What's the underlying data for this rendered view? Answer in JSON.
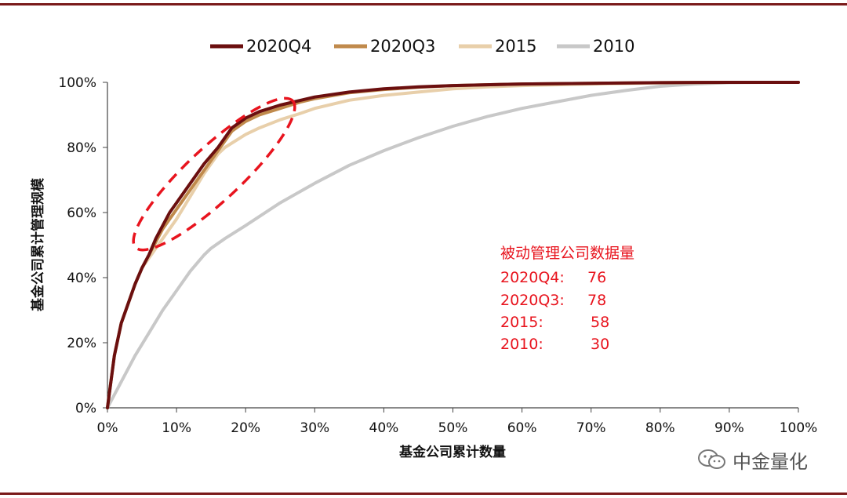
{
  "theme": {
    "rule_color": "#7a1a1a",
    "annotation_color": "#e8141e",
    "ellipse_color": "#e8141e",
    "axis_color": "#444444"
  },
  "chart_data": {
    "type": "line",
    "xlabel": "基金公司累计数量",
    "ylabel": "基金公司累计管理规模",
    "xlim": [
      0,
      100
    ],
    "ylim": [
      0,
      100
    ],
    "x_tick_labels": [
      "0%",
      "10%",
      "20%",
      "30%",
      "40%",
      "50%",
      "60%",
      "70%",
      "80%",
      "90%",
      "100%"
    ],
    "y_tick_labels": [
      "0%",
      "20%",
      "40%",
      "60%",
      "80%",
      "100%"
    ],
    "legend_position": "top",
    "grid": false,
    "series": [
      {
        "name": "2020Q4",
        "color": "#6b0f0f",
        "width": 4,
        "x": [
          0,
          1,
          2,
          3,
          4,
          5,
          6,
          7,
          8,
          9,
          10,
          12,
          14,
          16,
          18,
          20,
          22,
          25,
          28,
          30,
          35,
          40,
          45,
          50,
          60,
          70,
          80,
          90,
          100
        ],
        "y": [
          0,
          16,
          26,
          32,
          38,
          43,
          47,
          52,
          56,
          60,
          63,
          69,
          75,
          80,
          86,
          89,
          91,
          93,
          94.5,
          95.5,
          97,
          98,
          98.6,
          99,
          99.5,
          99.7,
          99.9,
          100,
          100
        ]
      },
      {
        "name": "2020Q3",
        "color": "#c08a4c",
        "width": 4,
        "x": [
          0,
          1,
          2,
          3,
          4,
          5,
          6,
          7,
          8,
          9,
          10,
          12,
          14,
          16,
          18,
          20,
          22,
          25,
          28,
          30,
          35,
          40,
          45,
          50,
          60,
          70,
          80,
          90,
          100
        ],
        "y": [
          0,
          16,
          26,
          32,
          38,
          43,
          47,
          51,
          55,
          58,
          61,
          67,
          73,
          79,
          85,
          88,
          90,
          92,
          94,
          95,
          96.8,
          97.8,
          98.5,
          99,
          99.5,
          99.7,
          99.9,
          100,
          100
        ]
      },
      {
        "name": "2015",
        "color": "#e8cfaa",
        "width": 4,
        "x": [
          0,
          1,
          2,
          3,
          4,
          5,
          6,
          7,
          8,
          10,
          12,
          14,
          16,
          17,
          20,
          22,
          25,
          28,
          30,
          35,
          40,
          45,
          50,
          55,
          60,
          70,
          80,
          90,
          100
        ],
        "y": [
          0,
          16,
          26,
          32,
          38,
          43,
          46,
          49,
          52,
          58,
          65,
          72,
          78,
          80,
          84,
          86,
          88.5,
          90.5,
          92,
          94.5,
          96,
          97,
          98,
          98.6,
          99,
          99.5,
          99.8,
          100,
          100
        ]
      },
      {
        "name": "2010",
        "color": "#c8c8c8",
        "width": 4,
        "x": [
          0,
          2,
          4,
          6,
          8,
          10,
          12,
          14,
          15,
          17,
          20,
          25,
          30,
          35,
          40,
          45,
          50,
          55,
          60,
          65,
          70,
          75,
          80,
          85,
          90,
          95,
          100
        ],
        "y": [
          0,
          8,
          16,
          23,
          30,
          36,
          42,
          47,
          49,
          52,
          56,
          63,
          69,
          74.5,
          79,
          83,
          86.5,
          89.5,
          92,
          94,
          96,
          97.5,
          98.8,
          99.5,
          99.9,
          100,
          100
        ]
      }
    ],
    "annotation": {
      "title": "被动管理公司数据量",
      "rows": [
        {
          "label": "2020Q4:",
          "value": "76"
        },
        {
          "label": "2020Q3:",
          "value": "78"
        },
        {
          "label": "2015:",
          "value": "58"
        },
        {
          "label": "2010:",
          "value": "30"
        }
      ]
    }
  },
  "watermark": {
    "text": "中金量化",
    "icon": "wechat-icon"
  }
}
